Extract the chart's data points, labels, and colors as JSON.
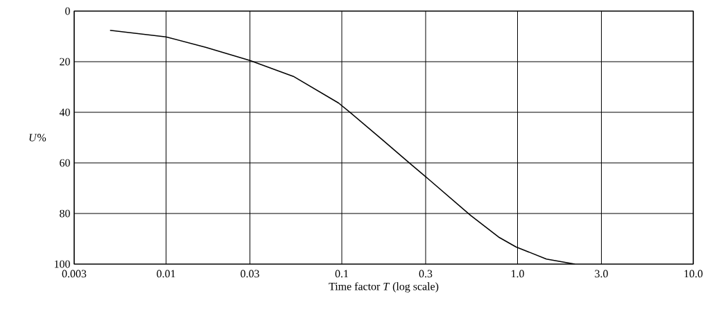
{
  "chart_data": {
    "type": "line",
    "xlabel": "Time factor *T* (log scale)",
    "ylabel": "*U*%",
    "x": [
      0.0048,
      0.01,
      0.0168,
      0.03,
      0.053,
      0.0957,
      0.113,
      0.167,
      0.247,
      0.31,
      0.54,
      0.78,
      0.98,
      1.46,
      2.12
    ],
    "values": [
      7.6,
      10.2,
      14.3,
      19.5,
      25.8,
      36.3,
      40.4,
      50.4,
      60.5,
      66.3,
      80.7,
      89.3,
      93.2,
      98,
      100
    ],
    "color": "#000000",
    "log": "x",
    "grid": true,
    "xlim": [
      0.003,
      10
    ],
    "ylim": [
      100,
      0
    ],
    "xticks": [
      0.003,
      0.01,
      0.03,
      0.1,
      0.3,
      {
        "value": 1,
        "label": "1.0"
      },
      {
        "value": 3,
        "label": "3.0"
      },
      {
        "value": 10,
        "label": "10.0"
      }
    ],
    "yticks": [
      0,
      20,
      40,
      60,
      80,
      100
    ]
  }
}
